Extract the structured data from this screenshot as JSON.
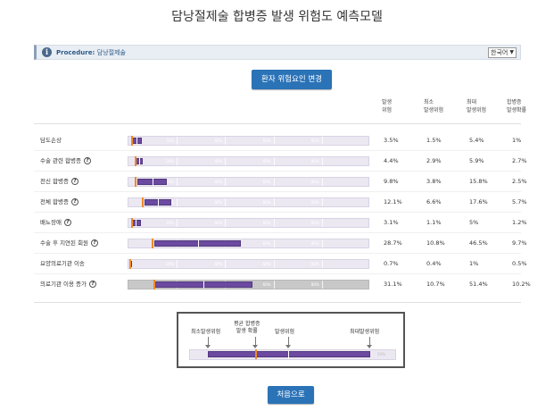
{
  "page": {
    "title": "담낭절제술 합병증 발생 위험도 예측모델"
  },
  "procedure": {
    "label": "Procedure:",
    "value": "담낭절제술",
    "language": "한국어"
  },
  "buttons": {
    "change_risk": "환자 위험요인 변경",
    "home": "처음으로"
  },
  "columns": {
    "risk": "발생\n위험",
    "min": "최소\n발생위험",
    "max": "최대\n발생위험",
    "avg": "합병증\n발생확률"
  },
  "track_ticks": [
    "20%",
    "40%",
    "60%",
    "80%"
  ],
  "rows": [
    {
      "label": "담도손상",
      "help": false,
      "risk": "3.5%",
      "min": "1.5%",
      "max": "5.4%",
      "avg": "1%",
      "risk_v": 3.5,
      "min_v": 1.5,
      "max_v": 5.4,
      "avg_v": 1,
      "gray": false
    },
    {
      "label": "수술 관련 합병증",
      "help": true,
      "risk": "4.4%",
      "min": "2.9%",
      "max": "5.9%",
      "avg": "2.7%",
      "risk_v": 4.4,
      "min_v": 2.9,
      "max_v": 5.9,
      "avg_v": 2.7,
      "gray": false
    },
    {
      "label": "전신 합병증",
      "help": true,
      "risk": "9.8%",
      "min": "3.8%",
      "max": "15.8%",
      "avg": "2.5%",
      "risk_v": 9.8,
      "min_v": 3.8,
      "max_v": 15.8,
      "avg_v": 2.5,
      "gray": false
    },
    {
      "label": "전체 합병증",
      "help": true,
      "risk": "12.1%",
      "min": "6.6%",
      "max": "17.6%",
      "avg": "5.7%",
      "risk_v": 12.1,
      "min_v": 6.6,
      "max_v": 17.6,
      "avg_v": 5.7,
      "gray": false
    },
    {
      "label": "배뇨장애",
      "help": true,
      "risk": "3.1%",
      "min": "1.1%",
      "max": "5%",
      "avg": "1.2%",
      "risk_v": 3.1,
      "min_v": 1.1,
      "max_v": 5,
      "avg_v": 1.2,
      "gray": false
    },
    {
      "label": "수술 후 지연된 회원",
      "help": true,
      "risk": "28.7%",
      "min": "10.8%",
      "max": "46.5%",
      "avg": "9.7%",
      "risk_v": 28.7,
      "min_v": 10.8,
      "max_v": 46.5,
      "avg_v": 9.7,
      "gray": false
    },
    {
      "label": "요양의료기관 이송",
      "help": false,
      "risk": "0.7%",
      "min": "0.4%",
      "max": "1%",
      "avg": "0.5%",
      "risk_v": 0.7,
      "min_v": 0.4,
      "max_v": 1,
      "avg_v": 0.5,
      "gray": false
    },
    {
      "label": "의료기관 이용 증가",
      "help": true,
      "risk": "31.1%",
      "min": "10.7%",
      "max": "51.4%",
      "avg": "10.2%",
      "risk_v": 31.1,
      "min_v": 10.7,
      "max_v": 51.4,
      "avg_v": 10.2,
      "gray": true
    }
  ],
  "legend": {
    "min_label": "최소발생위험",
    "avg_label": "평균 합병증\n발생 확률",
    "risk_label": "발생위험",
    "max_label": "최대발생위험",
    "pct": "50%"
  },
  "colors": {
    "accent": "#2b73b7",
    "range": "#6b4aa0",
    "avg_marker": "#f08a24"
  }
}
